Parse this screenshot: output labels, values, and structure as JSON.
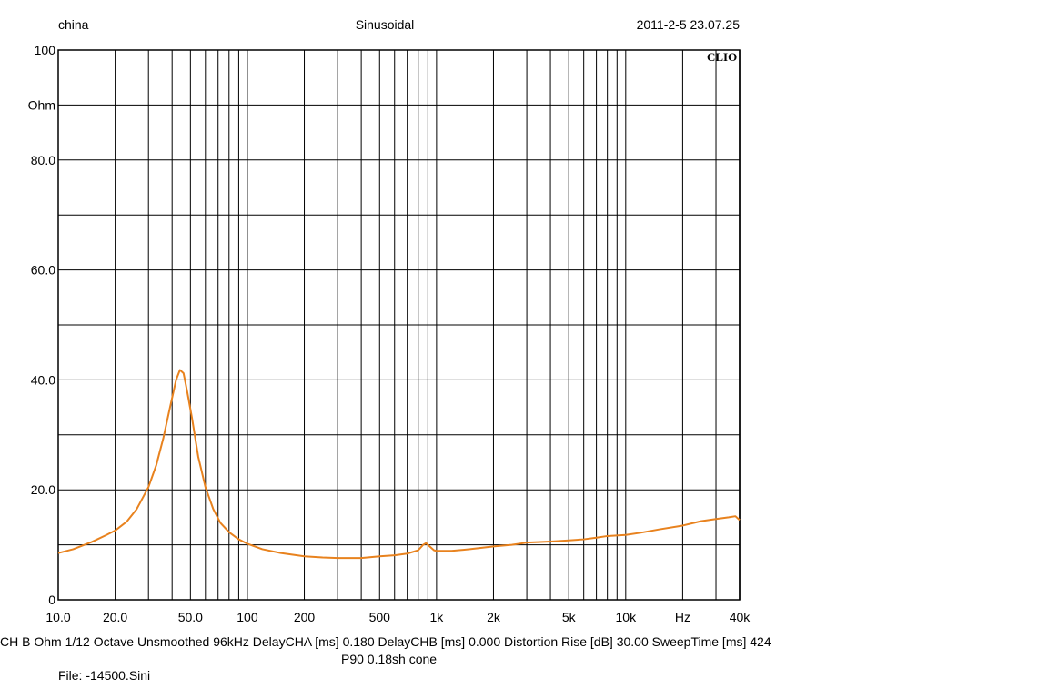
{
  "header": {
    "left": "china",
    "center": "Sinusoidal",
    "right": "2011-2-5 23.07.25"
  },
  "brand": "CLIO",
  "status": {
    "line": "CH B  Ohm  1/12 Octave  Unsmoothed  96kHz  DelayCHA [ms] 0.180  DelayCHB [ms] 0.000  Distortion Rise [dB] 30.00  SweepTime [ms] 424",
    "subtitle": "P90 0.18sh cone",
    "file": "File: -14500.Sini"
  },
  "colors": {
    "curve": "#e8821e",
    "grid": "#000000"
  },
  "chart_data": {
    "type": "line",
    "x_scale": "log",
    "xlim": [
      10,
      40000
    ],
    "ylim": [
      0,
      100
    ],
    "grid": true,
    "y_gridlines": [
      0,
      10,
      20,
      30,
      40,
      50,
      60,
      70,
      80,
      90,
      100
    ],
    "x_ticks": [
      {
        "value": 10,
        "label": "10.0"
      },
      {
        "value": 20,
        "label": "20.0"
      },
      {
        "value": 50,
        "label": "50.0"
      },
      {
        "value": 100,
        "label": "100"
      },
      {
        "value": 200,
        "label": "200"
      },
      {
        "value": 500,
        "label": "500"
      },
      {
        "value": 1000,
        "label": "1k"
      },
      {
        "value": 2000,
        "label": "2k"
      },
      {
        "value": 5000,
        "label": "5k"
      },
      {
        "value": 10000,
        "label": "10k"
      },
      {
        "value": 20000,
        "label": "Hz"
      },
      {
        "value": 40000,
        "label": "40k"
      }
    ],
    "y_ticks": [
      {
        "value": 100,
        "label": "100"
      },
      {
        "value": 90,
        "label": "Ohm"
      },
      {
        "value": 80,
        "label": "80.0"
      },
      {
        "value": 60,
        "label": "60.0"
      },
      {
        "value": 40,
        "label": "40.0"
      },
      {
        "value": 20,
        "label": "20.0"
      },
      {
        "value": 0,
        "label": "0"
      }
    ],
    "series": [
      {
        "points": [
          [
            10,
            8.5
          ],
          [
            12,
            9.2
          ],
          [
            15,
            10.5
          ],
          [
            18,
            11.8
          ],
          [
            20,
            12.6
          ],
          [
            23,
            14.2
          ],
          [
            26,
            16.5
          ],
          [
            30,
            20.5
          ],
          [
            33,
            24.5
          ],
          [
            36,
            29.5
          ],
          [
            39,
            35
          ],
          [
            42,
            40
          ],
          [
            44,
            41.8
          ],
          [
            46,
            41.2
          ],
          [
            48,
            38
          ],
          [
            51,
            33
          ],
          [
            55,
            26
          ],
          [
            60,
            20.5
          ],
          [
            66,
            16.5
          ],
          [
            72,
            14
          ],
          [
            80,
            12.3
          ],
          [
            90,
            11
          ],
          [
            100,
            10.2
          ],
          [
            120,
            9.2
          ],
          [
            150,
            8.5
          ],
          [
            200,
            7.9
          ],
          [
            250,
            7.7
          ],
          [
            300,
            7.6
          ],
          [
            400,
            7.6
          ],
          [
            500,
            7.9
          ],
          [
            600,
            8.1
          ],
          [
            700,
            8.4
          ],
          [
            800,
            9.0
          ],
          [
            850,
            10.0
          ],
          [
            880,
            10.3
          ],
          [
            920,
            9.7
          ],
          [
            970,
            9.0
          ],
          [
            1000,
            8.9
          ],
          [
            1200,
            8.9
          ],
          [
            1500,
            9.2
          ],
          [
            2000,
            9.7
          ],
          [
            2500,
            10.0
          ],
          [
            3000,
            10.4
          ],
          [
            4000,
            10.6
          ],
          [
            5000,
            10.8
          ],
          [
            6000,
            11.0
          ],
          [
            7000,
            11.3
          ],
          [
            8000,
            11.6
          ],
          [
            10000,
            11.8
          ],
          [
            12000,
            12.2
          ],
          [
            15000,
            12.8
          ],
          [
            20000,
            13.5
          ],
          [
            25000,
            14.3
          ],
          [
            30000,
            14.7
          ],
          [
            35000,
            15.0
          ],
          [
            38000,
            15.2
          ],
          [
            40000,
            14.5
          ]
        ]
      }
    ]
  }
}
